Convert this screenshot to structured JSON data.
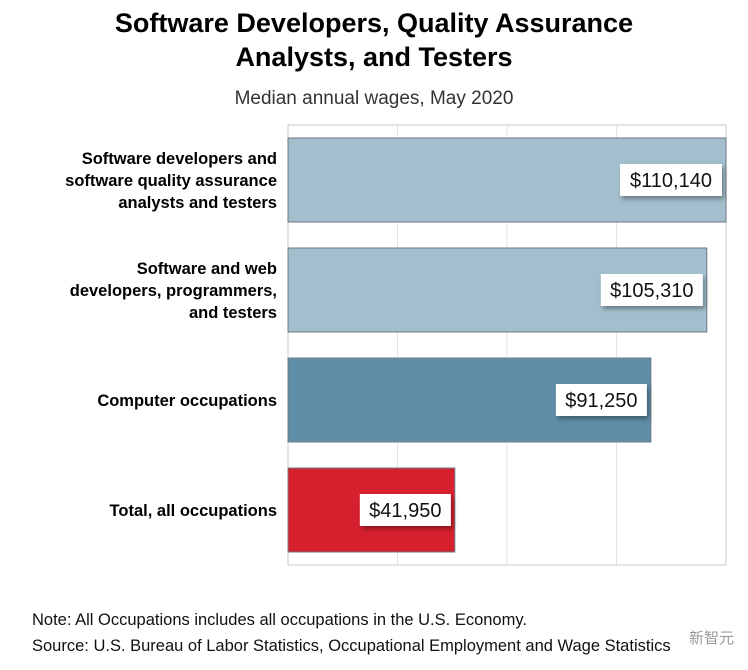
{
  "chart_data": {
    "type": "bar",
    "orientation": "horizontal",
    "title_lines": [
      "Software Developers, Quality Assurance",
      "Analysts, and Testers"
    ],
    "subtitle": "Median annual wages, May 2020",
    "categories": [
      [
        "Software developers and",
        "software quality assurance",
        "analysts and testers"
      ],
      [
        "Software and web",
        "developers, programmers,",
        "and testers"
      ],
      [
        "Computer occupations"
      ],
      [
        "Total, all occupations"
      ]
    ],
    "values": [
      110140,
      105310,
      91250,
      41950
    ],
    "value_labels": [
      "$110,140",
      "$105,310",
      "$91,250",
      "$41,950"
    ],
    "colors": [
      "#a3bfcd",
      "#a3bfcd",
      "#5f8ea8",
      "#d7202d"
    ],
    "xlim": [
      0,
      110140
    ],
    "grid": true,
    "legend": "none"
  },
  "notes": {
    "note": "Note: All Occupations includes all occupations in the U.S. Economy.",
    "source": "Source: U.S. Bureau of Labor Statistics, Occupational Employment and Wage Statistics"
  },
  "watermark": "新智元"
}
